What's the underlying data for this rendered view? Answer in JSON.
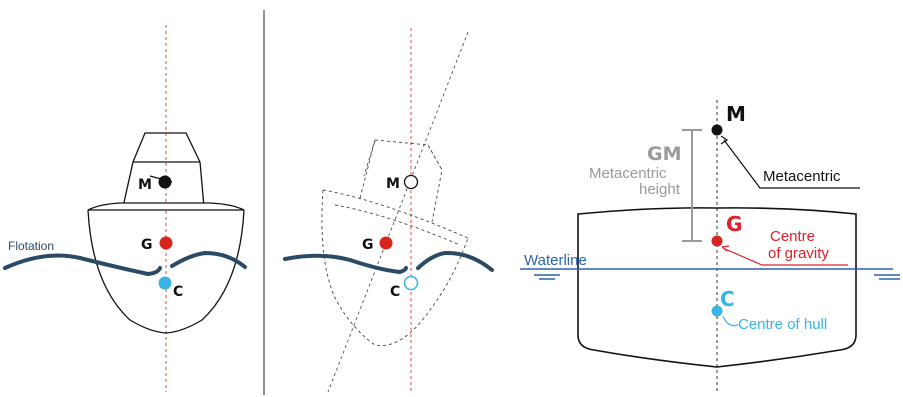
{
  "panel1": {
    "flotation_label": "Flotation",
    "m_label": "M",
    "g_label": "G",
    "c_label": "C"
  },
  "panel2": {
    "m_label": "M",
    "g_label": "G",
    "c_label": "C"
  },
  "panel3": {
    "m_label": "M",
    "g_label": "G",
    "c_label": "C",
    "gm_label": "GM",
    "metacentric_height_line1": "Metacentric",
    "metacentric_height_line2": "height",
    "metacentric_label": "Metacentric",
    "centre_of_gravity_line1": "Centre",
    "centre_of_gravity_line2": "of gravity",
    "centre_of_hull_label": "Centre of hull",
    "waterline_label": "Waterline"
  },
  "colors": {
    "wave": "#2b4a66",
    "red_dot": "#d7261e",
    "blue_dot": "#39b4e6",
    "axis_red": "#e24a4a",
    "waterline_blue": "#2a64b4",
    "gm_grey": "#9a9a9a",
    "red_text": "#e0202a",
    "blue_text": "#39b4e6"
  }
}
